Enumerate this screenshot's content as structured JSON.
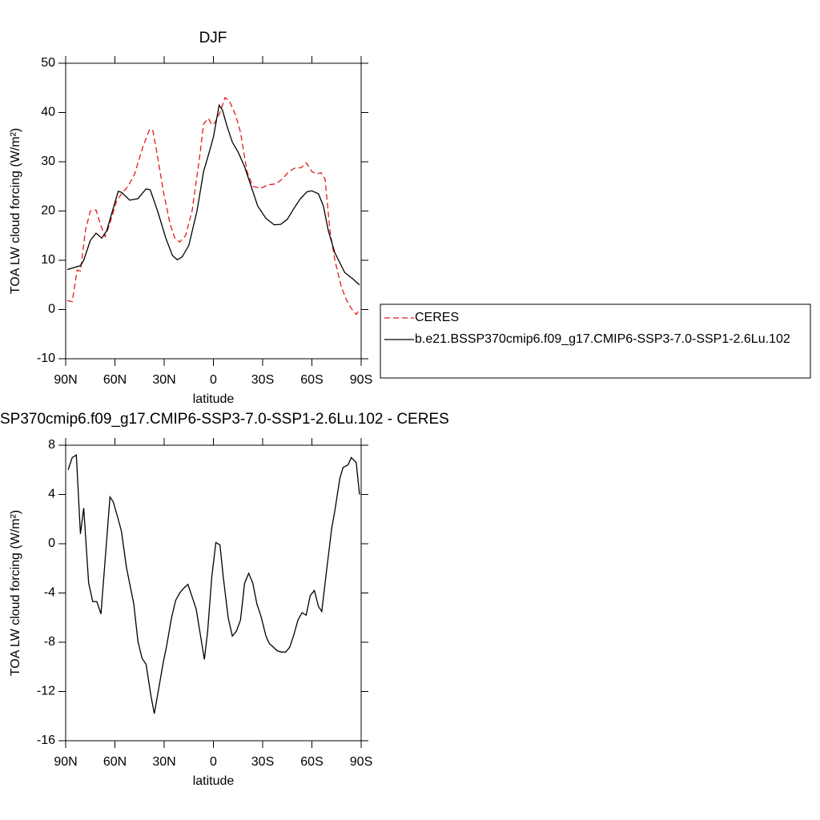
{
  "chart_data": [
    {
      "type": "line",
      "title": "DJF",
      "xlabel": "latitude",
      "ylabel": "TOA LW cloud forcing (W/m²)",
      "xlim": [
        90,
        -90
      ],
      "ylim": [
        -10,
        50
      ],
      "xticks": [
        {
          "value": 90,
          "label": "90N"
        },
        {
          "value": 60,
          "label": "60N"
        },
        {
          "value": 30,
          "label": "30N"
        },
        0,
        {
          "value": -30,
          "label": "30S"
        },
        {
          "value": -60,
          "label": "60S"
        },
        {
          "value": -90,
          "label": "90S"
        }
      ],
      "yticks": [
        -10,
        0,
        10,
        20,
        30,
        40,
        50
      ],
      "legend": "outside right",
      "series": [
        {
          "name": "CERES",
          "color": "#e41a1c",
          "linestyle": "dashed",
          "x": [
            89,
            86,
            83,
            81,
            78,
            75,
            71.5,
            68.5,
            66,
            63.5,
            59,
            56,
            52,
            48,
            43,
            39,
            37,
            34.5,
            30.5,
            26.5,
            23.5,
            20.5,
            17,
            13,
            8,
            6,
            3,
            1,
            -1,
            -4,
            -7,
            -9.5,
            -13.5,
            -16.5,
            -20.5,
            -24,
            -29,
            -33,
            -38,
            -42,
            -46,
            -49.5,
            -53.5,
            -56.5,
            -60,
            -63,
            -65.5,
            -68,
            -71,
            -74,
            -78,
            -81,
            -84,
            -87,
            -89
          ],
          "values": [
            1.8,
            1.6,
            8,
            7.8,
            16,
            20,
            20.2,
            17,
            14.8,
            17,
            22,
            23.5,
            25,
            27.5,
            33,
            36.5,
            36.5,
            32,
            24,
            17.5,
            14.5,
            13.7,
            15,
            20,
            32,
            37.7,
            38.8,
            37.5,
            38,
            40,
            43,
            42.5,
            39.5,
            36,
            28,
            25,
            24.6,
            25.3,
            25.5,
            26.5,
            28,
            28.7,
            28.8,
            29.8,
            28,
            27.5,
            27.8,
            26.5,
            16,
            10,
            4.5,
            2,
            0.2,
            -1,
            0
          ]
        },
        {
          "name": "b.e21.BSSP370cmip6.f09_g17.CMIP6-SSP3-7.0-SSP1-2.6Lu.102",
          "color": "#000000",
          "linestyle": "solid",
          "x": [
            89,
            81,
            79,
            75,
            71.5,
            68,
            65,
            58,
            56,
            51,
            46,
            41,
            38.5,
            34,
            29,
            25,
            22,
            19,
            15,
            10,
            6,
            2.5,
            0,
            -3.5,
            -5.5,
            -8.5,
            -11.5,
            -15,
            -19,
            -23,
            -27,
            -32,
            -37,
            -41,
            -45,
            -49,
            -53,
            -57,
            -60,
            -64,
            -67,
            -70,
            -74,
            -80,
            -85,
            -89
          ],
          "values": [
            8.1,
            8.9,
            10,
            14,
            15.5,
            14.5,
            16,
            24,
            23.8,
            22.2,
            22.5,
            24.5,
            24.3,
            20,
            14.5,
            11,
            10.1,
            10.7,
            13,
            20,
            28,
            32,
            35,
            41.5,
            40.5,
            37,
            34,
            32,
            29,
            25,
            21,
            18.5,
            17.2,
            17.3,
            18.3,
            20.5,
            22.5,
            23.9,
            24.1,
            23.5,
            21,
            16,
            11.5,
            7.5,
            6.2,
            5
          ]
        }
      ]
    },
    {
      "type": "line",
      "title": "SP370cmip6.f09_g17.CMIP6-SSP3-7.0-SSP1-2.6Lu.102 - CERES",
      "xlabel": "latitude",
      "ylabel": "TOA LW cloud forcing (W/m²)",
      "xlim": [
        90,
        -90
      ],
      "ylim": [
        -16,
        8
      ],
      "xticks": [
        {
          "value": 90,
          "label": "90N"
        },
        {
          "value": 60,
          "label": "60N"
        },
        {
          "value": 30,
          "label": "30N"
        },
        0,
        {
          "value": -30,
          "label": "30S"
        },
        {
          "value": -60,
          "label": "60S"
        },
        {
          "value": -90,
          "label": "90S"
        }
      ],
      "yticks": [
        -16,
        -12,
        -8,
        -4,
        0,
        4,
        8
      ],
      "series": [
        {
          "color": "#000000",
          "linestyle": "solid",
          "x": [
            88.5,
            86,
            83.5,
            81,
            79,
            76,
            73.5,
            71,
            68.5,
            63,
            61,
            58,
            56,
            53,
            48.5,
            46,
            43.5,
            41,
            38,
            36,
            33.5,
            30.5,
            28.5,
            25.5,
            23,
            20.5,
            18,
            15.5,
            10.5,
            5.5,
            3.5,
            1,
            -1.5,
            -4,
            -6,
            -9,
            -11.5,
            -14,
            -16.5,
            -19,
            -21.5,
            -24,
            -26.5,
            -29,
            -32,
            -34,
            -36.5,
            -39,
            -41.5,
            -44,
            -46.5,
            -49,
            -51.5,
            -54,
            -56.5,
            -59,
            -61.5,
            -64,
            -66,
            -69,
            -72,
            -74,
            -77,
            -79,
            -82,
            -84,
            -87,
            -89
          ],
          "values": [
            6,
            7,
            7.2,
            0.8,
            2.9,
            -3.2,
            -4.7,
            -4.7,
            -5.7,
            3.8,
            3.4,
            2,
            1,
            -1.9,
            -4.9,
            -7.9,
            -9.3,
            -9.8,
            -12.4,
            -13.8,
            -11.9,
            -9.6,
            -8.3,
            -6,
            -4.6,
            -4,
            -3.6,
            -3.3,
            -5.3,
            -9.4,
            -7.1,
            -2.7,
            0.1,
            -0.1,
            -2.7,
            -6,
            -7.5,
            -7.1,
            -6.2,
            -3.2,
            -2.4,
            -3.2,
            -4.9,
            -5.9,
            -7.5,
            -8.1,
            -8.4,
            -8.7,
            -8.8,
            -8.8,
            -8.4,
            -7.4,
            -6.2,
            -5.6,
            -5.8,
            -4.2,
            -3.8,
            -5.1,
            -5.5,
            -2.1,
            1.2,
            2.7,
            5.3,
            6.2,
            6.4,
            7,
            6.6,
            4
          ]
        }
      ]
    }
  ]
}
